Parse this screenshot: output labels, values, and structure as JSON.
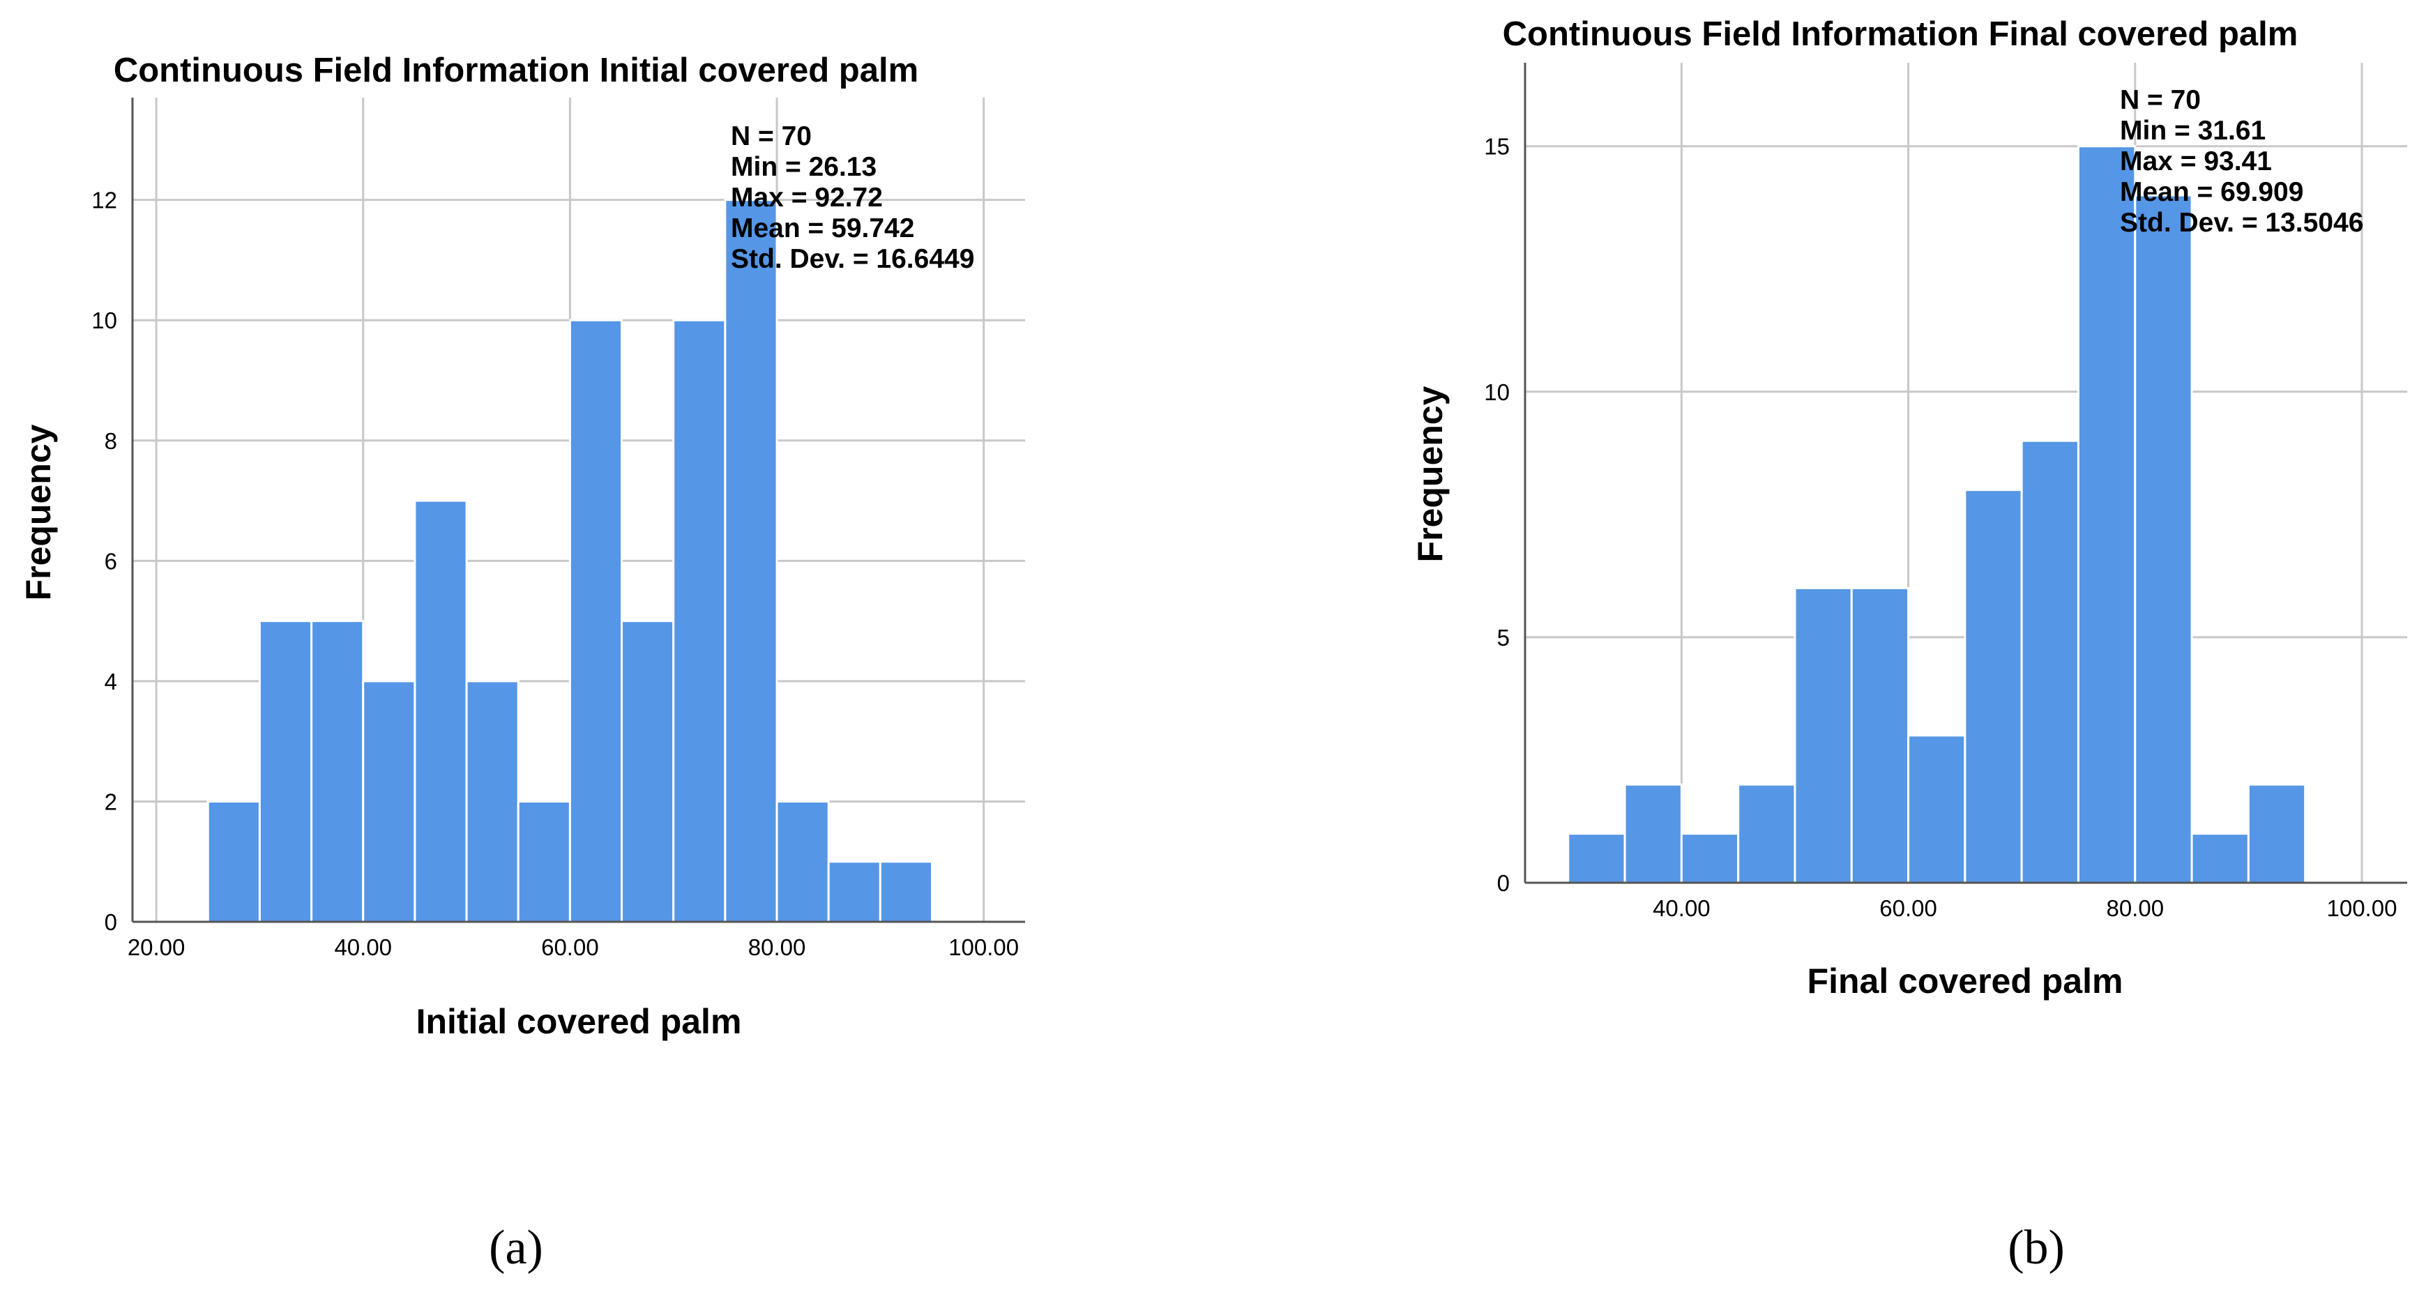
{
  "bar_color": "#5596E6",
  "chart_data": [
    {
      "type": "bar",
      "panel_label": "(a)",
      "title": "Continuous Field Information Initial covered palm",
      "xlabel": "Initial covered palm",
      "ylabel": "Frequency",
      "xlim": [
        17.7,
        104.0
      ],
      "ylim": [
        0,
        13.7
      ],
      "x_ticks": [
        {
          "value": 20,
          "label": "20.00"
        },
        {
          "value": 40,
          "label": "40.00"
        },
        {
          "value": 60,
          "label": "60.00"
        },
        {
          "value": 80,
          "label": "80.00"
        },
        {
          "value": 100,
          "label": "100.00"
        }
      ],
      "y_ticks": [
        {
          "value": 0,
          "label": "0"
        },
        {
          "value": 2,
          "label": "2"
        },
        {
          "value": 4,
          "label": "4"
        },
        {
          "value": 6,
          "label": "6"
        },
        {
          "value": 8,
          "label": "8"
        },
        {
          "value": 10,
          "label": "10"
        },
        {
          "value": 12,
          "label": "12"
        }
      ],
      "bin_width": 5,
      "bin_starts": [
        25,
        30,
        35,
        40,
        45,
        50,
        55,
        60,
        65,
        70,
        75,
        80,
        85,
        90
      ],
      "values": [
        2,
        5,
        5,
        4,
        7,
        4,
        2,
        10,
        5,
        10,
        12,
        2,
        1,
        1
      ],
      "stats": [
        "N = 70",
        "Min = 26.13",
        "Max = 92.72",
        "Mean = 59.742",
        "Std. Dev. = 16.6449"
      ]
    },
    {
      "type": "bar",
      "panel_label": "(b)",
      "title": "Continuous Field Information Final covered palm",
      "xlabel": "Final covered palm",
      "ylabel": "Frequency",
      "xlim": [
        26.2,
        104.0
      ],
      "ylim": [
        0,
        16.7
      ],
      "x_ticks": [
        {
          "value": 40,
          "label": "40.00"
        },
        {
          "value": 60,
          "label": "60.00"
        },
        {
          "value": 80,
          "label": "80.00"
        },
        {
          "value": 100,
          "label": "100.00"
        }
      ],
      "y_ticks": [
        {
          "value": 0,
          "label": "0"
        },
        {
          "value": 5,
          "label": "5"
        },
        {
          "value": 10,
          "label": "10"
        },
        {
          "value": 15,
          "label": "15"
        }
      ],
      "bin_width": 5,
      "bin_starts": [
        30,
        35,
        40,
        45,
        50,
        55,
        60,
        65,
        70,
        75,
        80,
        85,
        90
      ],
      "values": [
        1,
        2,
        1,
        2,
        6,
        6,
        3,
        8,
        9,
        15,
        14,
        1,
        2
      ],
      "stats": [
        "N = 70",
        "Min = 31.61",
        "Max = 93.41",
        "Mean = 69.909",
        "Std. Dev. = 13.5046"
      ]
    }
  ]
}
